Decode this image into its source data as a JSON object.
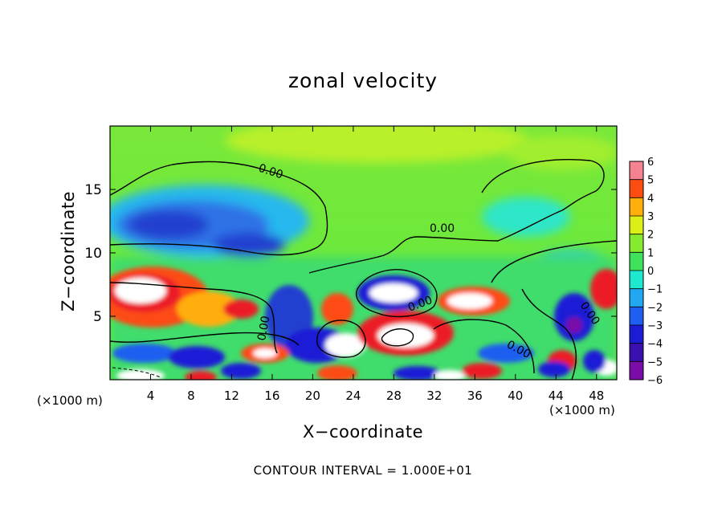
{
  "chart_data": {
    "type": "heatmap",
    "title": "zonal velocity",
    "xlabel": "X−coordinate",
    "ylabel": "Z−coordinate",
    "x_unit_label": "(×1000 m)",
    "z_unit_label": "(×1000 m)",
    "footnote": "CONTOUR INTERVAL = 1.000E+01",
    "xlim": [
      0,
      50
    ],
    "ylim": [
      0,
      20
    ],
    "x_ticks": [
      4,
      8,
      12,
      16,
      20,
      24,
      28,
      32,
      36,
      40,
      44,
      48
    ],
    "x_tick_labels": [
      "4",
      "8",
      "12",
      "16",
      "20",
      "24",
      "28",
      "32",
      "36",
      "40",
      "44",
      "48"
    ],
    "y_ticks": [
      5,
      10,
      15
    ],
    "y_tick_labels": [
      "5",
      "10",
      "15"
    ],
    "colorbar": {
      "levels": [
        -6,
        -5,
        -4,
        -3,
        -2,
        -1,
        0,
        1,
        2,
        3,
        4,
        5,
        6
      ],
      "labels": [
        "−6",
        "−5",
        "−4",
        "−3",
        "−2",
        "−1",
        "0",
        "1",
        "2",
        "3",
        "4",
        "5",
        "6"
      ],
      "colors": [
        "#7a0ca8",
        "#3b0fb0",
        "#1c1cd6",
        "#1e5ef0",
        "#22a7f2",
        "#1ee8cf",
        "#3fe25c",
        "#86ea2e",
        "#dcef17",
        "#ffae0c",
        "#fd4c12",
        "#ec1f28",
        "#f4838f"
      ]
    },
    "contour_label": "0.00",
    "colors": {
      "background_field": "#5fea3c",
      "upper_field": "#a6ee2a",
      "negative_core": "#1f4fd8",
      "positive_core": "#f32a1c",
      "saturated": "#ffffff"
    },
    "notes_visible": [
      "0.00",
      "0.00",
      "0.00",
      "0.00",
      "0.00",
      "0.00"
    ]
  }
}
